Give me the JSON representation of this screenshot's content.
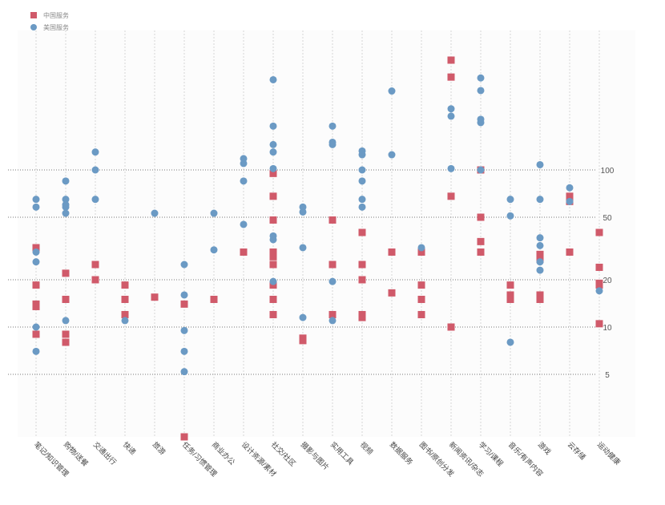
{
  "chart_data": {
    "type": "scatter",
    "title": "",
    "xlabel": "",
    "ylabel": "",
    "y_scale": "log",
    "ylim": [
      1.6,
      500
    ],
    "y_tick_labels": [
      "5",
      "10",
      "20",
      "50",
      "100"
    ],
    "grid": true,
    "legend_position": "top-left",
    "categories": [
      "笔记/知识管理",
      "购物/送餐",
      "交通出行",
      "快递",
      "旅游",
      "任务/习惯管理",
      "商业办公",
      "设计资源/素材",
      "社交/社区",
      "摄影与图片",
      "实用工具",
      "视频",
      "数据服务",
      "图书/原创分发",
      "新闻资讯/杂志",
      "学习/课程",
      "音乐/有声内容",
      "游戏",
      "云存储",
      "运动健康"
    ],
    "series": [
      {
        "name": "中国服务",
        "marker": "square",
        "color": "#d05a6a",
        "points": [
          {
            "category": "笔记/知识管理",
            "values": [
              32,
              18.5,
              14,
              13.5,
              9
            ]
          },
          {
            "category": "购物/送餐",
            "values": [
              22,
              15,
              9,
              8
            ]
          },
          {
            "category": "交通出行",
            "values": [
              25,
              20
            ]
          },
          {
            "category": "快递",
            "values": [
              18.5,
              15,
              12
            ]
          },
          {
            "category": "旅游",
            "values": [
              15.5
            ]
          },
          {
            "category": "任务/习惯管理",
            "values": [
              14,
              2
            ]
          },
          {
            "category": "商业办公",
            "values": [
              15
            ]
          },
          {
            "category": "设计资源/素材",
            "values": [
              30
            ]
          },
          {
            "category": "社交/社区",
            "values": [
              95,
              68,
              48,
              30,
              28,
              25,
              18.5,
              15,
              12
            ]
          },
          {
            "category": "摄影与图片",
            "values": [
              8.5,
              8.2
            ]
          },
          {
            "category": "实用工具",
            "values": [
              48,
              25,
              12
            ]
          },
          {
            "category": "视频",
            "values": [
              40,
              25,
              20,
              12,
              11.5
            ]
          },
          {
            "category": "数据服务",
            "values": [
              30,
              16.5
            ]
          },
          {
            "category": "图书/原创分发",
            "values": [
              30,
              18.5,
              15,
              12
            ]
          },
          {
            "category": "新闻资讯/杂志",
            "values": [
              500,
              390,
              68,
              10
            ]
          },
          {
            "category": "学习/课程",
            "values": [
              100,
              50,
              35,
              30
            ]
          },
          {
            "category": "音乐/有声内容",
            "values": [
              18.5,
              16,
              15
            ]
          },
          {
            "category": "游戏",
            "values": [
              29,
              27,
              16,
              15
            ]
          },
          {
            "category": "云存储",
            "values": [
              68,
              63,
              30
            ]
          },
          {
            "category": "运动健康",
            "values": [
              40,
              24,
              19,
              18.5,
              10.5
            ]
          }
        ]
      },
      {
        "name": "美国服务",
        "marker": "circle",
        "color": "#6b9ac4",
        "points": [
          {
            "category": "笔记/知识管理",
            "values": [
              65,
              58,
              30,
              26,
              10,
              7
            ]
          },
          {
            "category": "购物/送餐",
            "values": [
              85,
              65,
              60,
              58,
              53,
              11
            ]
          },
          {
            "category": "交通出行",
            "values": [
              130,
              100,
              65
            ]
          },
          {
            "category": "快递",
            "values": [
              11
            ]
          },
          {
            "category": "旅游",
            "values": [
              53
            ]
          },
          {
            "category": "任务/习惯管理",
            "values": [
              25,
              16,
              9.5,
              7,
              5.2
            ]
          },
          {
            "category": "商业办公",
            "values": [
              53,
              31
            ]
          },
          {
            "category": "设计资源/素材",
            "values": [
              118,
              110,
              85,
              45
            ]
          },
          {
            "category": "社交/社区",
            "values": [
              375,
              190,
              145,
              130,
              102,
              38,
              36,
              19.5
            ]
          },
          {
            "category": "摄影与图片",
            "values": [
              58,
              54,
              32,
              11.5
            ]
          },
          {
            "category": "实用工具",
            "values": [
              190,
              150,
              145,
              19.5,
              11
            ]
          },
          {
            "category": "视频",
            "values": [
              132,
              125,
              100,
              85,
              65,
              58
            ]
          },
          {
            "category": "数据服务",
            "values": [
              318,
              125
            ]
          },
          {
            "category": "图书/原创分发",
            "values": [
              32
            ]
          },
          {
            "category": "新闻资讯/杂志",
            "values": [
              245,
              220,
              102
            ]
          },
          {
            "category": "学习/课程",
            "values": [
              385,
              320,
              210,
              200,
              100
            ]
          },
          {
            "category": "音乐/有声内容",
            "values": [
              65,
              51,
              8
            ]
          },
          {
            "category": "游戏",
            "values": [
              108,
              65,
              37,
              33,
              26,
              23
            ]
          },
          {
            "category": "云存储",
            "values": [
              77,
              63
            ]
          },
          {
            "category": "运动健康",
            "values": [
              17
            ]
          }
        ]
      }
    ]
  }
}
